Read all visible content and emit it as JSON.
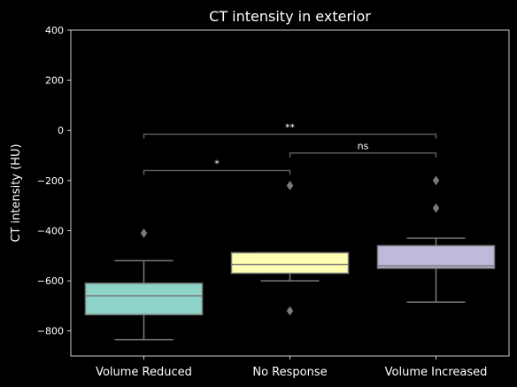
{
  "chart_data": {
    "type": "box",
    "title": "CT intensity in exterior",
    "xlabel": "",
    "ylabel": "CT intensity (HU)",
    "ylim": [
      -900,
      400
    ],
    "yticks": [
      400,
      200,
      0,
      -200,
      -400,
      -600,
      -800
    ],
    "categories": [
      "Volume Reduced",
      "No Response",
      "Volume Increased"
    ],
    "boxes": [
      {
        "q1": -735,
        "median": -660,
        "q3": -610,
        "whisker_low": -835,
        "whisker_high": -520,
        "outliers": [
          -410
        ],
        "color": "#8dd3c7"
      },
      {
        "q1": -570,
        "median": -535,
        "q3": -488,
        "whisker_low": -600,
        "whisker_high": -488,
        "outliers": [
          -220,
          -720
        ],
        "color": "#ffffb3"
      },
      {
        "q1": -550,
        "median": -540,
        "q3": -460,
        "whisker_low": -685,
        "whisker_high": -430,
        "outliers": [
          -200,
          -310
        ],
        "color": "#bebada"
      }
    ],
    "annotations": [
      {
        "from": 0,
        "to": 1,
        "y": -160,
        "text": "*"
      },
      {
        "from": 1,
        "to": 2,
        "y": -90,
        "text": "ns"
      },
      {
        "from": 0,
        "to": 2,
        "y": -15,
        "text": "**"
      }
    ],
    "grid": false,
    "colors": {
      "background": "#000000",
      "axes": "#ffffff",
      "edge": "#7a7a7a",
      "bracket": "#5a5a5a"
    }
  }
}
